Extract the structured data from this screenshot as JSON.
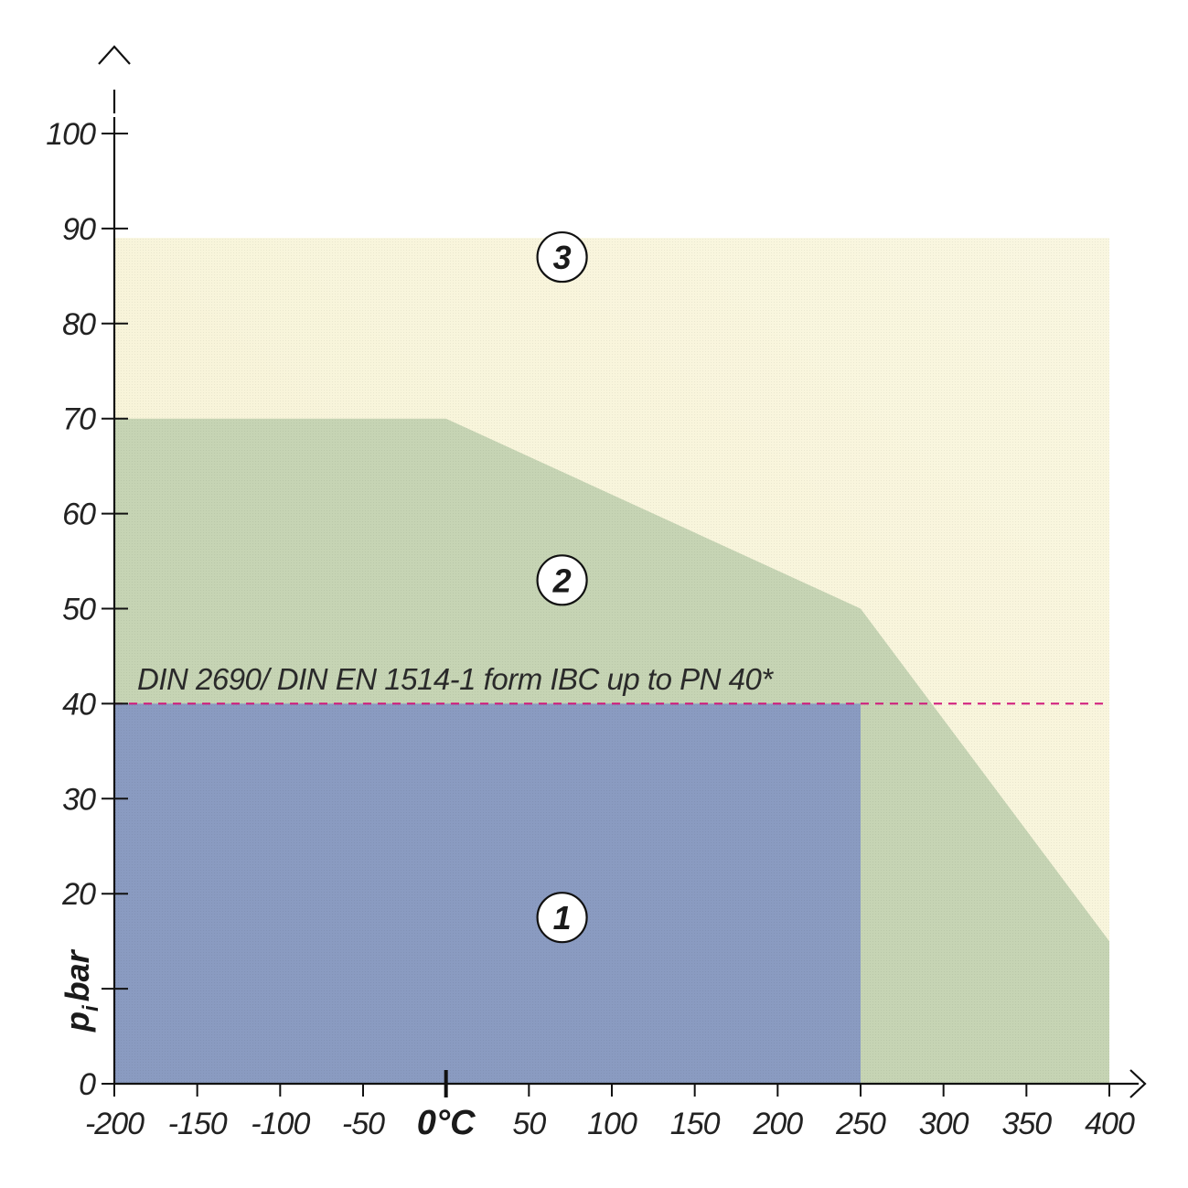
{
  "chart_data": {
    "type": "area",
    "xlim": [
      -200,
      400
    ],
    "ylim": [
      0,
      100
    ],
    "x_ticks": [
      -200,
      -150,
      -100,
      -50,
      0,
      50,
      100,
      150,
      200,
      250,
      300,
      350,
      400
    ],
    "x_tick_labels": [
      "-200",
      "-150",
      "-100",
      "-50",
      "",
      "50",
      "100",
      "150",
      "200",
      "250",
      "300",
      "350",
      "400"
    ],
    "x_zero_label": "0°C",
    "y_ticks": [
      0,
      10,
      20,
      30,
      40,
      50,
      60,
      70,
      80,
      90,
      100
    ],
    "y_tick_labels": [
      "0",
      "",
      "20",
      "30",
      "40",
      "50",
      "60",
      "70",
      "80",
      "90",
      "100"
    ],
    "ylabel_main": "p",
    "ylabel_sub": "i",
    "ylabel_unit": "bar",
    "annotation": "DIN 2690/ DIN EN 1514-1 form IBC up to PN 40*",
    "reference_line": {
      "y": 40,
      "color": "#d0157a"
    },
    "regions": [
      {
        "name": "3",
        "color": "#f4efc6",
        "points": [
          [
            -200,
            89
          ],
          [
            400,
            89
          ],
          [
            400,
            0
          ],
          [
            -200,
            0
          ]
        ],
        "label_pos": [
          70,
          87
        ]
      },
      {
        "name": "2",
        "color": "#c6d4b4",
        "points": [
          [
            -200,
            70
          ],
          [
            0,
            70
          ],
          [
            250,
            50
          ],
          [
            400,
            15
          ],
          [
            400,
            0
          ],
          [
            -200,
            0
          ]
        ],
        "label_pos": [
          70,
          53
        ]
      },
      {
        "name": "1",
        "color": "#8a9bc1",
        "points": [
          [
            -200,
            40
          ],
          [
            250,
            40
          ],
          [
            250,
            0
          ],
          [
            -200,
            0
          ]
        ],
        "label_pos": [
          70,
          17.5
        ]
      }
    ]
  }
}
